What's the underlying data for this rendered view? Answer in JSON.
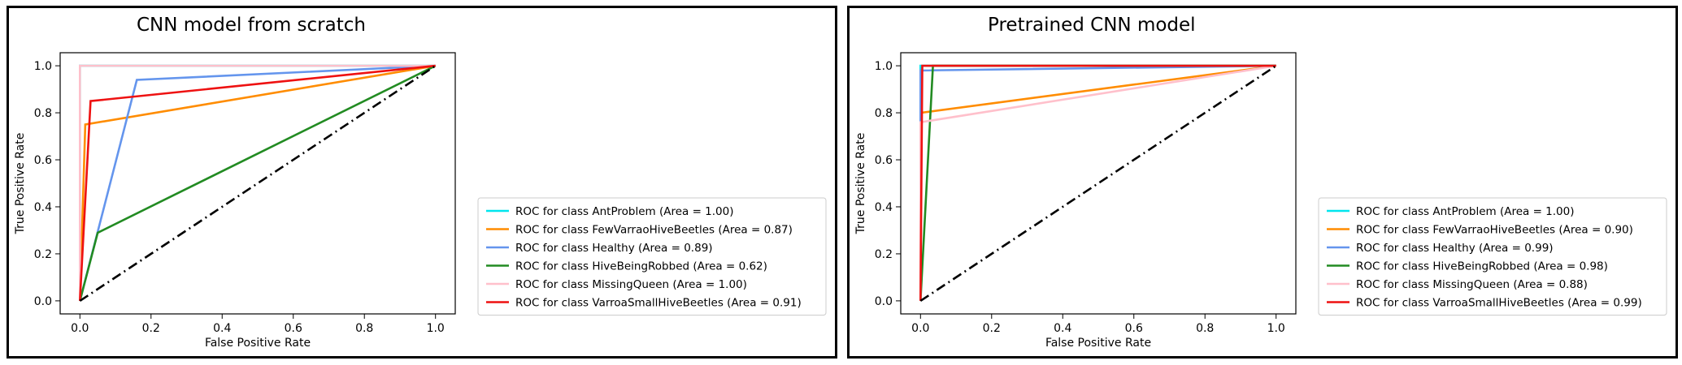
{
  "chart_data": [
    {
      "type": "line",
      "title": "CNN model from scratch",
      "xlabel": "False Positive Rate",
      "ylabel": "True Positive Rate",
      "xlim": [
        0.0,
        1.0
      ],
      "ylim": [
        0.0,
        1.0
      ],
      "xticks": [
        "0.0",
        "0.2",
        "0.4",
        "0.6",
        "0.8",
        "1.0"
      ],
      "yticks": [
        "0.0",
        "0.2",
        "0.4",
        "0.6",
        "0.8",
        "1.0"
      ],
      "grid": false,
      "legend_position": "center-right",
      "series": [
        {
          "name": "ROC for class AntProblem (Area = 1.00)",
          "color": "#00e5ee",
          "x": [
            0.0,
            0.0,
            1.0
          ],
          "y": [
            0.0,
            1.0,
            1.0
          ]
        },
        {
          "name": "ROC for class FewVarraoHiveBeetles (Area = 0.87)",
          "color": "#ff8c00",
          "x": [
            0.0,
            0.015,
            1.0
          ],
          "y": [
            0.0,
            0.75,
            1.0
          ]
        },
        {
          "name": "ROC for class Healthy (Area = 0.89)",
          "color": "#6495ed",
          "x": [
            0.0,
            0.16,
            1.0
          ],
          "y": [
            0.0,
            0.94,
            1.0
          ]
        },
        {
          "name": "ROC for class HiveBeingRobbed (Area = 0.62)",
          "color": "#228b22",
          "x": [
            0.0,
            0.05,
            1.0
          ],
          "y": [
            0.0,
            0.29,
            1.0
          ]
        },
        {
          "name": "ROC for class MissingQueen (Area = 1.00)",
          "color": "#ffc0cb",
          "x": [
            0.0,
            0.0,
            1.0
          ],
          "y": [
            0.0,
            1.0,
            1.0
          ]
        },
        {
          "name": "ROC for class VarroaSmallHiveBeetles (Area = 0.91)",
          "color": "#ee1111",
          "x": [
            0.0,
            0.03,
            1.0
          ],
          "y": [
            0.0,
            0.85,
            1.0
          ]
        }
      ],
      "reference_line": {
        "x": [
          0.0,
          1.0
        ],
        "y": [
          0.0,
          1.0
        ],
        "color": "#000000",
        "style": "dash-dot"
      }
    },
    {
      "type": "line",
      "title": "Pretrained CNN model",
      "xlabel": "False Positive Rate",
      "ylabel": "True Positive Rate",
      "xlim": [
        0.0,
        1.0
      ],
      "ylim": [
        0.0,
        1.0
      ],
      "xticks": [
        "0.0",
        "0.2",
        "0.4",
        "0.6",
        "0.8",
        "1.0"
      ],
      "yticks": [
        "0.0",
        "0.2",
        "0.4",
        "0.6",
        "0.8",
        "1.0"
      ],
      "grid": false,
      "legend_position": "center-right",
      "series": [
        {
          "name": "ROC for class AntProblem (Area = 1.00)",
          "color": "#00e5ee",
          "x": [
            0.0,
            0.0,
            1.0
          ],
          "y": [
            0.0,
            1.0,
            1.0
          ]
        },
        {
          "name": "ROC for class FewVarraoHiveBeetles (Area = 0.90)",
          "color": "#ff8c00",
          "x": [
            0.0,
            0.0,
            1.0
          ],
          "y": [
            0.0,
            0.8,
            1.0
          ]
        },
        {
          "name": "ROC for class Healthy (Area = 0.99)",
          "color": "#6495ed",
          "x": [
            0.0,
            0.0,
            1.0
          ],
          "y": [
            0.0,
            0.98,
            1.0
          ]
        },
        {
          "name": "ROC for class HiveBeingRobbed (Area = 0.98)",
          "color": "#228b22",
          "x": [
            0.0,
            0.035,
            1.0
          ],
          "y": [
            0.0,
            1.0,
            1.0
          ]
        },
        {
          "name": "ROC for class MissingQueen (Area = 0.88)",
          "color": "#ffc0cb",
          "x": [
            0.0,
            0.0,
            1.0
          ],
          "y": [
            0.0,
            0.76,
            1.0
          ]
        },
        {
          "name": "ROC for class VarroaSmallHiveBeetles (Area = 0.99)",
          "color": "#ee1111",
          "x": [
            0.0,
            0.005,
            1.0
          ],
          "y": [
            0.0,
            1.0,
            1.0
          ]
        }
      ],
      "reference_line": {
        "x": [
          0.0,
          1.0
        ],
        "y": [
          0.0,
          1.0
        ],
        "color": "#000000",
        "style": "dash-dot"
      }
    }
  ]
}
